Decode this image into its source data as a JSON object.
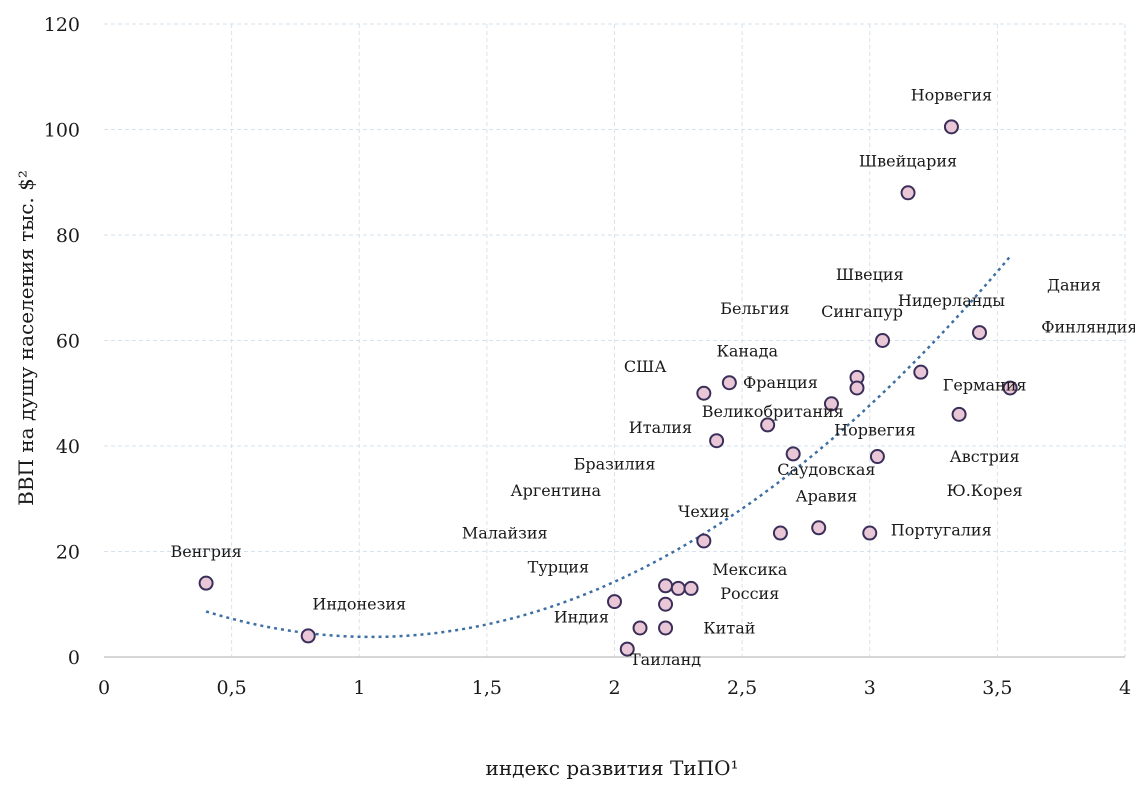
{
  "chart_data": {
    "type": "scatter",
    "xlabel": "индекс развития ТиПО¹",
    "ylabel": "ВВП на душу населения тыс. $²",
    "xlim": [
      0,
      4
    ],
    "ylim": [
      0,
      120
    ],
    "x_ticks": [
      "0",
      "0,5",
      "1",
      "1,5",
      "2",
      "2,5",
      "3",
      "3,5",
      "4"
    ],
    "y_ticks": [
      "0",
      "20",
      "40",
      "60",
      "80",
      "100",
      "120"
    ],
    "grid": true,
    "trendline": {
      "type": "polynomial",
      "style": "dotted",
      "color": "#3e6fa3"
    },
    "marker_fill": "#e9c7d6",
    "marker_stroke": "#3a2f5a",
    "points": [
      {
        "x": 0.4,
        "y": 14
      },
      {
        "x": 0.8,
        "y": 4
      },
      {
        "x": 2.0,
        "y": 10.5
      },
      {
        "x": 2.05,
        "y": 1.5
      },
      {
        "x": 2.1,
        "y": 5.5
      },
      {
        "x": 2.2,
        "y": 5.5
      },
      {
        "x": 2.2,
        "y": 10
      },
      {
        "x": 2.2,
        "y": 13.5
      },
      {
        "x": 2.25,
        "y": 13
      },
      {
        "x": 2.3,
        "y": 13
      },
      {
        "x": 2.35,
        "y": 22
      },
      {
        "x": 2.35,
        "y": 50
      },
      {
        "x": 2.4,
        "y": 41
      },
      {
        "x": 2.45,
        "y": 52
      },
      {
        "x": 2.6,
        "y": 44
      },
      {
        "x": 2.65,
        "y": 23.5
      },
      {
        "x": 2.7,
        "y": 38.5
      },
      {
        "x": 2.8,
        "y": 24.5
      },
      {
        "x": 2.85,
        "y": 48
      },
      {
        "x": 2.95,
        "y": 53
      },
      {
        "x": 2.95,
        "y": 51
      },
      {
        "x": 3.0,
        "y": 23.5
      },
      {
        "x": 3.03,
        "y": 38
      },
      {
        "x": 3.05,
        "y": 60
      },
      {
        "x": 3.15,
        "y": 88
      },
      {
        "x": 3.2,
        "y": 54
      },
      {
        "x": 3.32,
        "y": 100.5
      },
      {
        "x": 3.35,
        "y": 46
      },
      {
        "x": 3.43,
        "y": 61.5
      },
      {
        "x": 3.55,
        "y": 51
      }
    ],
    "labels": [
      {
        "text": "Венгрия",
        "x": 0.4,
        "y": 19
      },
      {
        "text": "Индонезия",
        "x": 1.0,
        "y": 9
      },
      {
        "text": "Турция",
        "x": 1.78,
        "y": 16
      },
      {
        "text": "Индия",
        "x": 1.87,
        "y": 6.5
      },
      {
        "text": "Таиланд",
        "x": 2.2,
        "y": -1.5
      },
      {
        "text": "Китай",
        "x": 2.45,
        "y": 4.5
      },
      {
        "text": "Мексика",
        "x": 2.53,
        "y": 15.5
      },
      {
        "text": "Россия",
        "x": 2.53,
        "y": 11
      },
      {
        "text": "Малайзия",
        "x": 1.57,
        "y": 22.5
      },
      {
        "text": "Аргентина",
        "x": 1.77,
        "y": 30.5
      },
      {
        "text": "Бразилия",
        "x": 2.0,
        "y": 35.5
      },
      {
        "text": "Чехия",
        "x": 2.35,
        "y": 26.5
      },
      {
        "text": "Италия",
        "x": 2.18,
        "y": 42.5
      },
      {
        "text": "США",
        "x": 2.12,
        "y": 54
      },
      {
        "text": "Канада",
        "x": 2.52,
        "y": 57
      },
      {
        "text": "Бельгия",
        "x": 2.55,
        "y": 65
      },
      {
        "text": "Франция",
        "x": 2.65,
        "y": 51
      },
      {
        "text": "Великобритания",
        "x": 2.62,
        "y": 45.5
      },
      {
        "text": "Сингапур",
        "x": 2.97,
        "y": 64.5
      },
      {
        "text": "Швеция",
        "x": 3.0,
        "y": 71.5
      },
      {
        "text": "Нидерланды",
        "x": 3.32,
        "y": 66.5
      },
      {
        "text": "Дания",
        "x": 3.8,
        "y": 69.5
      },
      {
        "text": "Финляндия",
        "x": 3.86,
        "y": 61.5
      },
      {
        "text": "Германия",
        "x": 3.45,
        "y": 50.5
      },
      {
        "text": "Норвегия",
        "x": 3.02,
        "y": 42
      },
      {
        "text": "Австрия",
        "x": 3.45,
        "y": 37
      },
      {
        "text": "Саудовская",
        "x": 2.83,
        "y": 34.5
      },
      {
        "text": "Аравия",
        "x": 2.83,
        "y": 29.5
      },
      {
        "text": "Ю.Корея",
        "x": 3.45,
        "y": 30.5
      },
      {
        "text": "Португалия",
        "x": 3.28,
        "y": 23
      },
      {
        "text": "Швейцария",
        "x": 3.15,
        "y": 93
      },
      {
        "text": "Норвегия",
        "x": 3.32,
        "y": 105.5
      }
    ]
  }
}
